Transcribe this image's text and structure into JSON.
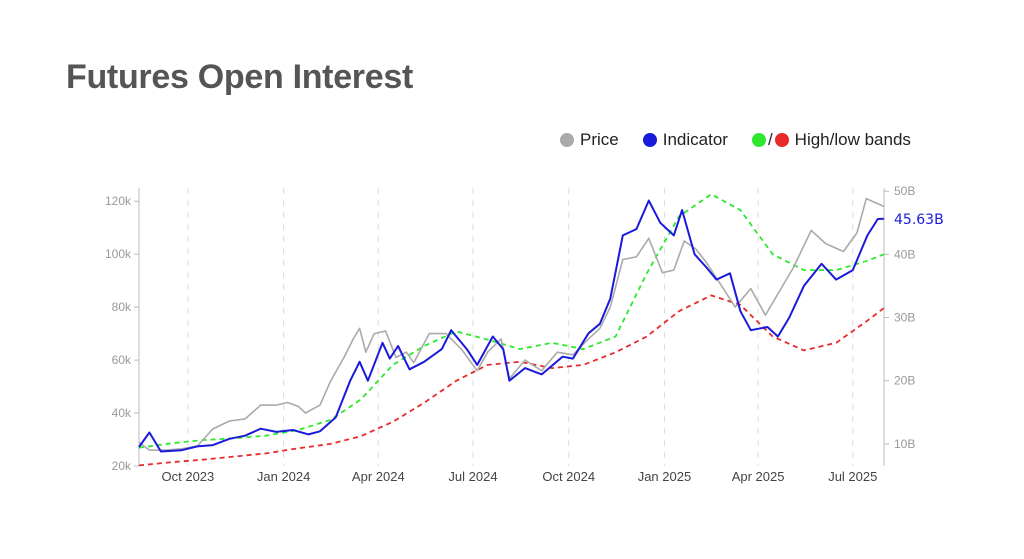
{
  "title": "Futures Open Interest",
  "legend": {
    "price_label": "Price",
    "indicator_label": "Indicator",
    "bands_label": "High/low bands",
    "slash": "/"
  },
  "colors": {
    "price": "#aaaaaa",
    "indicator": "#1a1adb",
    "high_band": "#2ee82e",
    "low_band": "#e82a2a",
    "grid": "#dddddd",
    "axis": "#bbbbbb"
  },
  "chart_data": {
    "type": "line",
    "title": "Futures Open Interest",
    "x_range": [
      "2023-08-15",
      "2025-07-31"
    ],
    "grid": "vertical dashed lines at x ticks",
    "legend_position": "top-right",
    "left_axis": {
      "label": "",
      "min": 20000,
      "max": 125000,
      "ticks": [
        20000,
        40000,
        60000,
        80000,
        100000,
        120000
      ],
      "tick_labels": [
        "20k",
        "40k",
        "60k",
        "80k",
        "100k",
        "120k"
      ]
    },
    "right_axis": {
      "label": "",
      "min": 6.5,
      "max": 50.5,
      "ticks": [
        10,
        20,
        30,
        40,
        50
      ],
      "tick_labels": [
        "10B",
        "20B",
        "30B",
        "40B",
        "50B"
      ]
    },
    "x_ticks": [
      {
        "date": "2023-10-01",
        "label": "Oct 2023"
      },
      {
        "date": "2024-01-01",
        "label": "Jan 2024"
      },
      {
        "date": "2024-04-01",
        "label": "Apr 2024"
      },
      {
        "date": "2024-07-01",
        "label": "Jul 2024"
      },
      {
        "date": "2024-10-01",
        "label": "Oct 2024"
      },
      {
        "date": "2025-01-01",
        "label": "Jan 2025"
      },
      {
        "date": "2025-04-01",
        "label": "Apr 2025"
      },
      {
        "date": "2025-07-01",
        "label": "Jul 2025"
      }
    ],
    "last_value_label": "45.63B",
    "series": [
      {
        "name": "Price",
        "axis": "left",
        "style": "solid",
        "points": [
          [
            "2023-08-15",
            29000
          ],
          [
            "2023-08-25",
            26000
          ],
          [
            "2023-09-10",
            26000
          ],
          [
            "2023-09-25",
            26500
          ],
          [
            "2023-10-10",
            27500
          ],
          [
            "2023-10-25",
            34000
          ],
          [
            "2023-11-10",
            37000
          ],
          [
            "2023-11-25",
            37800
          ],
          [
            "2023-12-10",
            43000
          ],
          [
            "2023-12-25",
            43000
          ],
          [
            "2024-01-05",
            44000
          ],
          [
            "2024-01-15",
            42500
          ],
          [
            "2024-01-22",
            40000
          ],
          [
            "2024-02-05",
            43000
          ],
          [
            "2024-02-15",
            52000
          ],
          [
            "2024-02-28",
            61000
          ],
          [
            "2024-03-08",
            68000
          ],
          [
            "2024-03-14",
            72000
          ],
          [
            "2024-03-20",
            63000
          ],
          [
            "2024-03-28",
            70000
          ],
          [
            "2024-04-08",
            71000
          ],
          [
            "2024-04-18",
            61000
          ],
          [
            "2024-04-28",
            63000
          ],
          [
            "2024-05-05",
            59000
          ],
          [
            "2024-05-20",
            70000
          ],
          [
            "2024-06-05",
            70000
          ],
          [
            "2024-06-20",
            64000
          ],
          [
            "2024-07-05",
            56000
          ],
          [
            "2024-07-15",
            63000
          ],
          [
            "2024-07-28",
            68000
          ],
          [
            "2024-08-05",
            53000
          ],
          [
            "2024-08-20",
            60000
          ],
          [
            "2024-09-05",
            56000
          ],
          [
            "2024-09-20",
            63000
          ],
          [
            "2024-10-05",
            62000
          ],
          [
            "2024-10-20",
            68000
          ],
          [
            "2024-10-31",
            72000
          ],
          [
            "2024-11-10",
            80000
          ],
          [
            "2024-11-22",
            98000
          ],
          [
            "2024-12-05",
            99000
          ],
          [
            "2024-12-17",
            106000
          ],
          [
            "2024-12-30",
            93000
          ],
          [
            "2025-01-10",
            94000
          ],
          [
            "2025-01-20",
            105000
          ],
          [
            "2025-01-31",
            102000
          ],
          [
            "2025-02-10",
            97000
          ],
          [
            "2025-02-25",
            88000
          ],
          [
            "2025-03-10",
            80000
          ],
          [
            "2025-03-25",
            87000
          ],
          [
            "2025-04-08",
            77000
          ],
          [
            "2025-04-20",
            85000
          ],
          [
            "2025-05-05",
            95000
          ],
          [
            "2025-05-22",
            109000
          ],
          [
            "2025-06-05",
            104000
          ],
          [
            "2025-06-22",
            101000
          ],
          [
            "2025-07-05",
            108000
          ],
          [
            "2025-07-14",
            121000
          ],
          [
            "2025-07-31",
            118000
          ]
        ]
      },
      {
        "name": "Indicator",
        "axis": "right",
        "style": "solid",
        "points": [
          [
            "2023-08-15",
            9.5
          ],
          [
            "2023-08-25",
            11.8
          ],
          [
            "2023-09-05",
            8.8
          ],
          [
            "2023-09-25",
            9.0
          ],
          [
            "2023-10-10",
            9.6
          ],
          [
            "2023-10-25",
            9.8
          ],
          [
            "2023-11-10",
            10.8
          ],
          [
            "2023-11-25",
            11.3
          ],
          [
            "2023-12-10",
            12.4
          ],
          [
            "2023-12-25",
            11.9
          ],
          [
            "2024-01-10",
            12.2
          ],
          [
            "2024-01-25",
            11.5
          ],
          [
            "2024-02-05",
            12.0
          ],
          [
            "2024-02-20",
            14.2
          ],
          [
            "2024-03-05",
            20.0
          ],
          [
            "2024-03-14",
            23.0
          ],
          [
            "2024-03-22",
            20.0
          ],
          [
            "2024-04-05",
            26.0
          ],
          [
            "2024-04-12",
            23.5
          ],
          [
            "2024-04-20",
            25.5
          ],
          [
            "2024-05-01",
            21.8
          ],
          [
            "2024-05-15",
            23.0
          ],
          [
            "2024-06-01",
            25.0
          ],
          [
            "2024-06-10",
            28.0
          ],
          [
            "2024-06-25",
            25.0
          ],
          [
            "2024-07-05",
            22.5
          ],
          [
            "2024-07-20",
            27.0
          ],
          [
            "2024-07-30",
            25.0
          ],
          [
            "2024-08-05",
            20.0
          ],
          [
            "2024-08-20",
            22.0
          ],
          [
            "2024-09-05",
            21.0
          ],
          [
            "2024-09-25",
            23.8
          ],
          [
            "2024-10-05",
            23.5
          ],
          [
            "2024-10-20",
            27.5
          ],
          [
            "2024-10-31",
            29.0
          ],
          [
            "2024-11-10",
            33.0
          ],
          [
            "2024-11-22",
            43.0
          ],
          [
            "2024-12-05",
            44.0
          ],
          [
            "2024-12-17",
            48.5
          ],
          [
            "2024-12-28",
            45.0
          ],
          [
            "2025-01-10",
            43.0
          ],
          [
            "2025-01-18",
            47.0
          ],
          [
            "2025-01-30",
            40.0
          ],
          [
            "2025-02-10",
            38.0
          ],
          [
            "2025-02-20",
            36.0
          ],
          [
            "2025-03-05",
            37.0
          ],
          [
            "2025-03-15",
            31.0
          ],
          [
            "2025-03-25",
            28.0
          ],
          [
            "2025-04-10",
            28.5
          ],
          [
            "2025-04-20",
            27.0
          ],
          [
            "2025-05-01",
            30.0
          ],
          [
            "2025-05-15",
            35.0
          ],
          [
            "2025-06-01",
            38.5
          ],
          [
            "2025-06-15",
            36.0
          ],
          [
            "2025-07-01",
            37.5
          ],
          [
            "2025-07-15",
            43.0
          ],
          [
            "2025-07-25",
            45.6
          ],
          [
            "2025-07-31",
            45.63
          ]
        ]
      },
      {
        "name": "High band",
        "axis": "right",
        "style": "dashed",
        "points": [
          [
            "2023-08-15",
            9.4
          ],
          [
            "2023-09-15",
            10.1
          ],
          [
            "2023-10-15",
            10.6
          ],
          [
            "2023-11-15",
            10.9
          ],
          [
            "2023-12-15",
            11.3
          ],
          [
            "2024-01-15",
            12.2
          ],
          [
            "2024-02-15",
            13.8
          ],
          [
            "2024-03-15",
            17.0
          ],
          [
            "2024-04-15",
            22.5
          ],
          [
            "2024-05-15",
            25.5
          ],
          [
            "2024-06-15",
            27.8
          ],
          [
            "2024-07-15",
            26.5
          ],
          [
            "2024-08-15",
            25.0
          ],
          [
            "2024-09-15",
            26.0
          ],
          [
            "2024-10-15",
            25.0
          ],
          [
            "2024-11-15",
            27.0
          ],
          [
            "2024-12-15",
            37.0
          ],
          [
            "2025-01-15",
            46.0
          ],
          [
            "2025-02-15",
            49.5
          ],
          [
            "2025-03-15",
            47.0
          ],
          [
            "2025-04-15",
            40.0
          ],
          [
            "2025-05-15",
            37.5
          ],
          [
            "2025-06-15",
            37.5
          ],
          [
            "2025-07-15",
            39.0
          ],
          [
            "2025-07-31",
            40.0
          ]
        ]
      },
      {
        "name": "Low band",
        "axis": "right",
        "style": "dashed",
        "points": [
          [
            "2023-08-15",
            6.6
          ],
          [
            "2023-09-15",
            7.1
          ],
          [
            "2023-10-15",
            7.5
          ],
          [
            "2023-11-15",
            8.0
          ],
          [
            "2023-12-15",
            8.5
          ],
          [
            "2024-01-15",
            9.3
          ],
          [
            "2024-02-15",
            10.0
          ],
          [
            "2024-03-15",
            11.2
          ],
          [
            "2024-04-15",
            13.5
          ],
          [
            "2024-05-15",
            16.5
          ],
          [
            "2024-06-15",
            20.0
          ],
          [
            "2024-07-15",
            22.5
          ],
          [
            "2024-08-15",
            23.0
          ],
          [
            "2024-09-15",
            22.0
          ],
          [
            "2024-10-15",
            22.5
          ],
          [
            "2024-11-15",
            24.5
          ],
          [
            "2024-12-15",
            27.0
          ],
          [
            "2025-01-15",
            31.0
          ],
          [
            "2025-02-15",
            33.5
          ],
          [
            "2025-03-15",
            32.0
          ],
          [
            "2025-04-15",
            27.0
          ],
          [
            "2025-05-15",
            24.8
          ],
          [
            "2025-06-15",
            26.0
          ],
          [
            "2025-07-15",
            29.5
          ],
          [
            "2025-07-31",
            31.5
          ]
        ]
      }
    ]
  }
}
